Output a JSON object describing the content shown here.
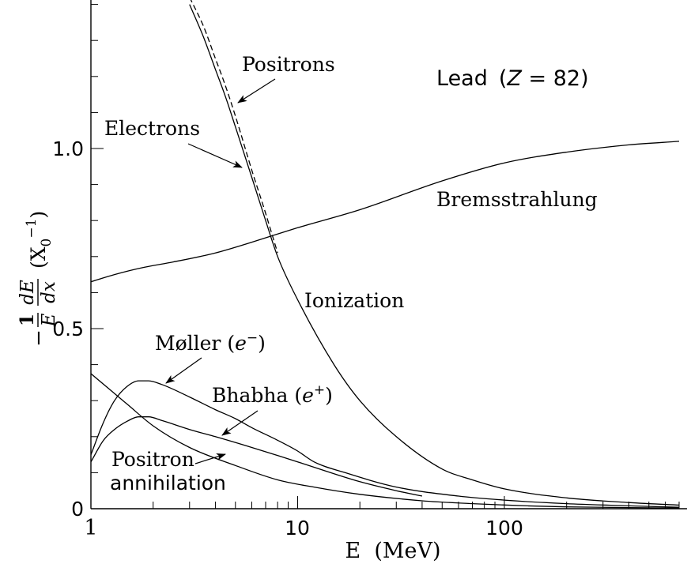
{
  "chart_data": {
    "type": "line",
    "xscale": "log",
    "xlim": [
      1,
      700
    ],
    "ylim": [
      0,
      1.4
    ],
    "xlabel": "E  (MeV)",
    "ylabel_prefix": "−",
    "ylabel_frac_num": "1",
    "ylabel_frac_den": "E",
    "ylabel_dnum": "dE",
    "ylabel_dden": "dx",
    "ylabel_unit": "(X",
    "ylabel_unit_sub": "0",
    "ylabel_unit_sup": "−1",
    "ylabel_unit_close": ")",
    "x_ticks": [
      1,
      10,
      100
    ],
    "x_tick_labels": [
      "1",
      "10",
      "100"
    ],
    "y_ticks": [
      0,
      0.5,
      1.0
    ],
    "y_tick_labels": [
      "0",
      "0.5",
      "1.0"
    ],
    "grid": false,
    "series": [
      {
        "name": "Bremsstrahlung",
        "x": [
          1,
          1.3,
          1.8,
          2.5,
          4,
          6,
          10,
          20,
          50,
          100,
          200,
          400,
          700
        ],
        "y": [
          0.63,
          0.65,
          0.67,
          0.685,
          0.71,
          0.74,
          0.78,
          0.83,
          0.91,
          0.96,
          0.99,
          1.01,
          1.02
        ]
      },
      {
        "name": "Electrons",
        "x": [
          3.0,
          3.5,
          4.0,
          4.5,
          5.0,
          6.0,
          7.0,
          8.0,
          10,
          15,
          20,
          30,
          50,
          70,
          100,
          200,
          400,
          700
        ],
        "y": [
          1.4,
          1.31,
          1.22,
          1.14,
          1.06,
          0.92,
          0.8,
          0.7,
          0.58,
          0.4,
          0.3,
          0.2,
          0.11,
          0.08,
          0.055,
          0.03,
          0.017,
          0.01
        ]
      },
      {
        "name": "Positrons",
        "x": [
          3.0,
          3.5,
          4.0,
          4.5,
          5.0,
          6.0,
          7.0,
          8.0
        ],
        "y": [
          1.42,
          1.34,
          1.25,
          1.17,
          1.09,
          0.94,
          0.82,
          0.71
        ]
      },
      {
        "name": "Møller (e⁻)",
        "x": [
          1.0,
          1.15,
          1.3,
          1.5,
          1.7,
          1.9,
          2.2,
          3.0,
          4.0,
          5.0,
          6.0,
          8.0,
          10,
          12,
          17,
          30,
          60,
          100,
          200,
          400,
          700
        ],
        "y": [
          0.15,
          0.24,
          0.3,
          0.34,
          0.355,
          0.355,
          0.345,
          0.31,
          0.275,
          0.25,
          0.225,
          0.19,
          0.16,
          0.13,
          0.1,
          0.06,
          0.035,
          0.024,
          0.014,
          0.008,
          0.004
        ]
      },
      {
        "name": "Bhabha (e⁺)",
        "x": [
          1.0,
          1.15,
          1.3,
          1.5,
          1.7,
          1.9,
          2.2,
          3.0,
          4.0,
          6.0,
          10,
          20,
          30,
          40
        ],
        "y": [
          0.13,
          0.19,
          0.22,
          0.243,
          0.255,
          0.255,
          0.245,
          0.22,
          0.2,
          0.17,
          0.13,
          0.075,
          0.05,
          0.035
        ]
      },
      {
        "name": "Positron annihilation",
        "x": [
          1.0,
          1.5,
          2.0,
          3.0,
          5.0,
          8.0,
          12,
          20,
          40,
          70,
          130,
          200,
          400,
          700
        ],
        "y": [
          0.375,
          0.29,
          0.23,
          0.17,
          0.12,
          0.08,
          0.06,
          0.04,
          0.022,
          0.014,
          0.008,
          0.005,
          0.003,
          0.002
        ]
      }
    ],
    "annotations": {
      "material": "Lead",
      "z_label": "Z",
      "z_value": " = 82)",
      "positrons": "Positrons",
      "electrons": "Electrons",
      "bremsstrahlung": "Bremsstrahlung",
      "ionization": "Ionization",
      "moller_word": "Møller (",
      "moller_e": "e",
      "moller_sup": "−",
      "moller_close": ")",
      "bhabha_word": "Bhabha (",
      "bhabha_e": "e",
      "bhabha_sup": "+",
      "bhabha_close": ")",
      "positron_line1": "Positron",
      "positron_line2": "annihilation"
    }
  }
}
